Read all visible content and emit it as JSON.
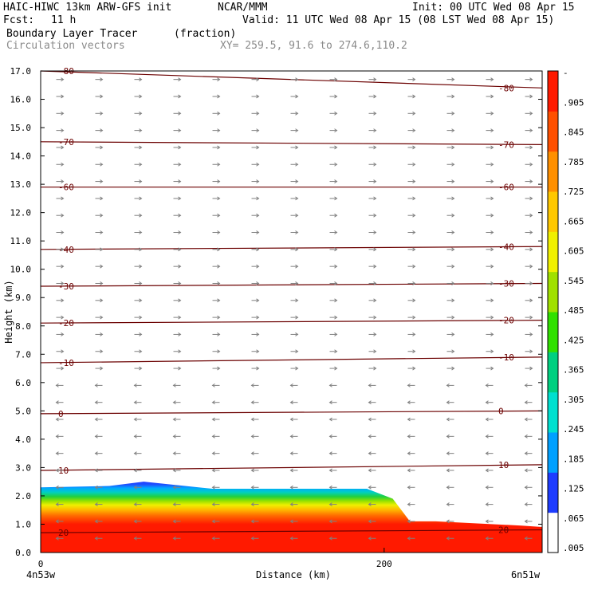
{
  "header": {
    "model": "HAIC-HIWC 13km ARW-GFS init",
    "org": "NCAR/MMM",
    "init": "Init: 00 UTC Wed 08 Apr 15",
    "fcst_label": "Fcst:",
    "fcst_value": "11 h",
    "valid": "Valid: 11 UTC Wed 08 Apr 15 (08 LST Wed 08 Apr 15)",
    "field_name": "Boundary Layer Tracer",
    "field_units": "(fraction)",
    "vector_label": "Circulation vectors",
    "xsec_coords": "XY= 259.5, 91.6 to 274.6,110.2"
  },
  "chart_data": {
    "type": "heatmap",
    "title": "Boundary Layer Tracer (fraction)",
    "xlabel": "Distance (km)",
    "ylabel": "Height (km)",
    "xlim": [
      0,
      292
    ],
    "ylim": [
      0,
      17
    ],
    "x_ticks": [
      0,
      200
    ],
    "y_ticks": [
      "0.0",
      "1.0",
      "2.0",
      "3.0",
      "4.0",
      "5.0",
      "6.0",
      "7.0",
      "8.0",
      "9.0",
      "10.0",
      "11.0",
      "12.0",
      "13.0",
      "14.0",
      "15.0",
      "16.0",
      "17.0"
    ],
    "x_end_labels": [
      "4n53w",
      "6n51w"
    ],
    "colorbar_labels": [
      ".005",
      ".065",
      ".125",
      ".185",
      ".245",
      ".305",
      ".365",
      ".425",
      ".485",
      ".545",
      ".605",
      ".665",
      ".725",
      ".785",
      ".845",
      ".905",
      "-"
    ],
    "colors": {
      "contour": "#6b0000",
      "vectors": "#808080",
      "colorbar": [
        "#ffffff",
        "#1e3cff",
        "#00a0ff",
        "#00e0d0",
        "#00d080",
        "#30e000",
        "#a0e000",
        "#f0f000",
        "#ffc800",
        "#ff9000",
        "#ff5000",
        "#ff1a00"
      ]
    },
    "tracer_top_profile": {
      "x_km": [
        0,
        40,
        60,
        100,
        190,
        205,
        215,
        230,
        280,
        292
      ],
      "top_height_km": [
        2.3,
        2.35,
        2.5,
        2.25,
        2.25,
        1.9,
        1.1,
        1.1,
        0.95,
        0.9
      ]
    },
    "temperature_contours": [
      {
        "label": "-80",
        "y_left": 17.0,
        "y_right": 16.4
      },
      {
        "label": "-70",
        "y_left": 14.5,
        "y_right": 14.4
      },
      {
        "label": "-60",
        "y_left": 12.9,
        "y_right": 12.9
      },
      {
        "label": "-40",
        "y_left": 10.7,
        "y_right": 10.8
      },
      {
        "label": "-30",
        "y_left": 9.4,
        "y_right": 9.5
      },
      {
        "label": "-20",
        "y_left": 8.1,
        "y_right": 8.2
      },
      {
        "label": "-10",
        "y_left": 6.7,
        "y_right": 6.9
      },
      {
        "label": "0",
        "y_left": 4.9,
        "y_right": 5.0
      },
      {
        "label": "10",
        "y_left": 2.9,
        "y_right": 3.1
      },
      {
        "label": "20",
        "y_left": 0.7,
        "y_right": 0.8
      }
    ]
  }
}
